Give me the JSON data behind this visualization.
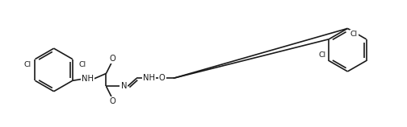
{
  "bg_color": "#ffffff",
  "line_color": "#1a1a1a",
  "line_width": 1.2,
  "font_size": 7.2,
  "fig_width": 5.04,
  "fig_height": 1.58,
  "dpi": 100
}
